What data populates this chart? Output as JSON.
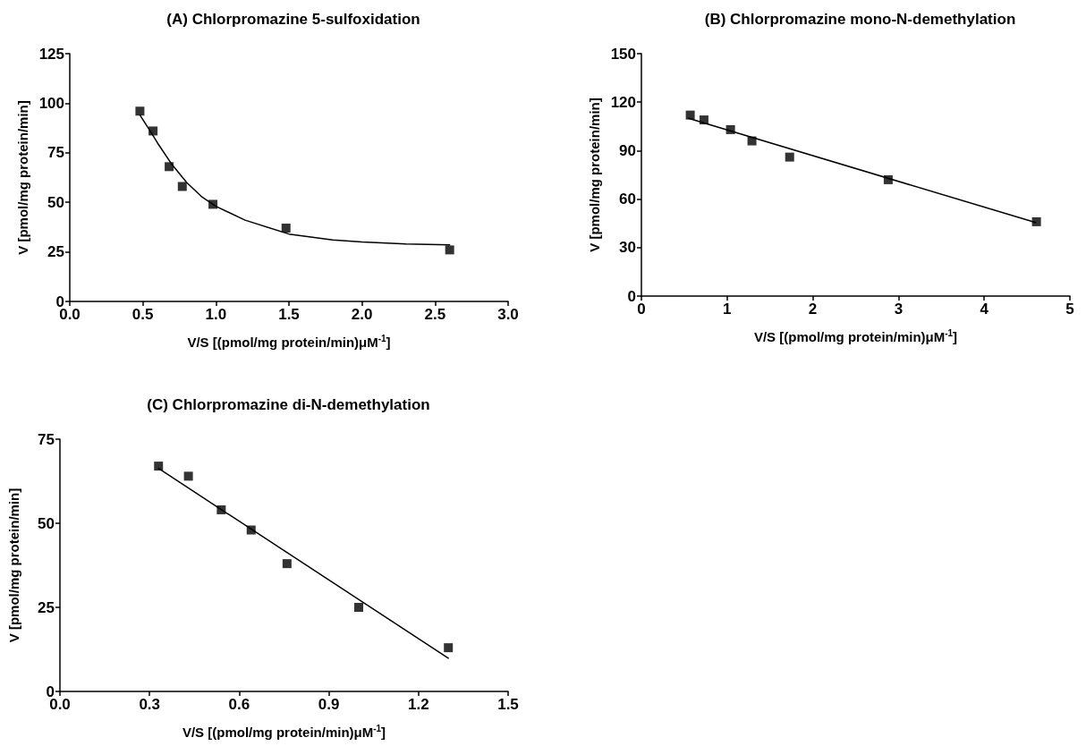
{
  "chart_data": [
    {
      "type": "scatter",
      "title": "(A) Chlorpromazine 5-sulfoxidation",
      "xlabel": "V/S [(pmol/mg protein/min)μM$^{-1}$]",
      "ylabel": "V [pmol/mg protein/min]",
      "xlim": [
        0,
        3
      ],
      "xticks": [
        {
          "value": 0,
          "label": "0.0"
        },
        0.5,
        {
          "value": 1,
          "label": "1.0"
        },
        1.5,
        {
          "value": 2,
          "label": "2.0"
        },
        2.5,
        {
          "value": 3,
          "label": "3.0"
        }
      ],
      "ylim": [
        0,
        125
      ],
      "yticks": [
        0,
        25,
        50,
        75,
        100,
        125
      ],
      "series": [
        {
          "marker": "square",
          "color": "#000000",
          "x": [
            0.48,
            0.57,
            0.68,
            0.77,
            0.98,
            1.48,
            2.6
          ],
          "values": [
            96,
            86,
            68,
            58,
            49,
            37,
            26
          ]
        },
        {
          "type": "line",
          "marker": "none",
          "color": "#000000",
          "x": [
            0.48,
            0.55,
            0.6,
            0.7,
            0.8,
            0.9,
            1.0,
            1.2,
            1.5,
            1.8,
            2.0,
            2.3,
            2.6
          ],
          "values": [
            94,
            86,
            80,
            69,
            60,
            53,
            48,
            41,
            34,
            31,
            30,
            29,
            28.5
          ]
        }
      ]
    },
    {
      "type": "scatter",
      "title": "(B) Chlorpromazine mono-N-demethylation",
      "xlabel": "V/S [(pmol/mg protein/min)μM$^{-1}$]",
      "ylabel": "V [pmol/mg protein/min]",
      "xlim": [
        0,
        5
      ],
      "xticks": [
        0,
        1,
        2,
        3,
        4,
        5
      ],
      "ylim": [
        0,
        150
      ],
      "yticks": [
        0,
        30,
        60,
        90,
        120,
        150
      ],
      "series": [
        {
          "marker": "square",
          "color": "#000000",
          "x": [
            0.57,
            0.73,
            1.04,
            1.29,
            1.73,
            2.88,
            4.61
          ],
          "values": [
            112,
            109,
            103,
            96,
            86,
            72,
            46
          ]
        },
        {
          "type": "line",
          "marker": "none",
          "color": "#000000",
          "x": [
            0.55,
            4.6
          ],
          "values": [
            110,
            45.5
          ]
        }
      ]
    },
    {
      "type": "scatter",
      "title": "(C) Chlorpromazine di-N-demethylation",
      "xlabel": "V/S [(pmol/mg protein/min)μM$^{-1}$]",
      "ylabel": "V [pmol/mg protein/min]",
      "xlim": [
        0,
        1.5
      ],
      "xticks": [
        {
          "value": 0,
          "label": "0.0"
        },
        0.3,
        0.6,
        0.9,
        1.2,
        1.5
      ],
      "ylim": [
        0,
        75
      ],
      "yticks": [
        0,
        25,
        50,
        75
      ],
      "series": [
        {
          "marker": "square",
          "color": "#000000",
          "x": [
            0.33,
            0.43,
            0.54,
            0.64,
            0.76,
            1.0,
            1.3
          ],
          "values": [
            67,
            64,
            54,
            48,
            38,
            25,
            13
          ]
        },
        {
          "type": "line",
          "marker": "none",
          "color": "#000000",
          "x": [
            0.33,
            1.3
          ],
          "values": [
            66.3,
            9.9
          ]
        }
      ]
    }
  ]
}
